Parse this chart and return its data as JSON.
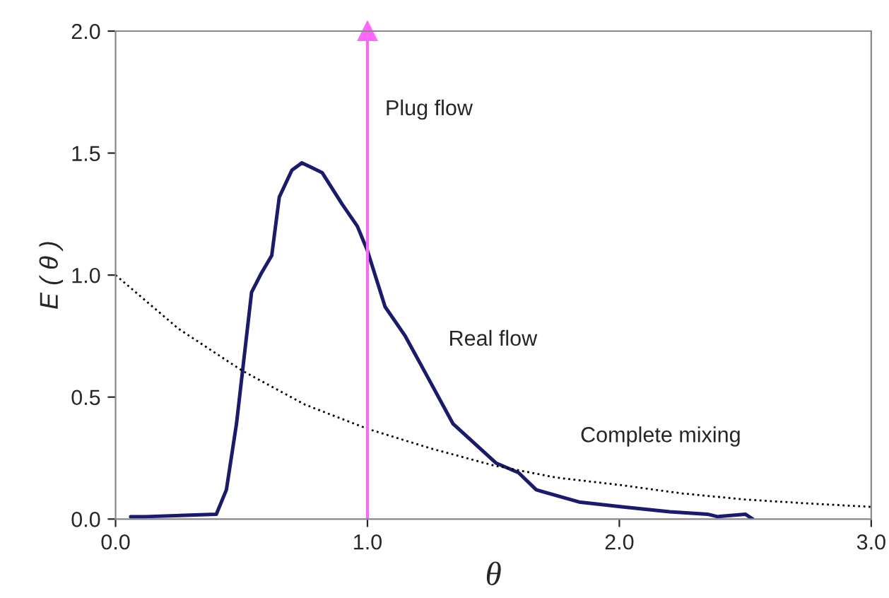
{
  "chart_data": {
    "type": "line",
    "xlabel": "θ",
    "ylabel": "E ( θ )",
    "xlim": [
      0.0,
      3.0
    ],
    "xticks": [
      {
        "value": 0,
        "label": "0.0"
      },
      {
        "value": 1,
        "label": "1.0"
      },
      {
        "value": 2,
        "label": "2.0"
      },
      {
        "value": 3,
        "label": "3.0"
      }
    ],
    "ylim": [
      0.0,
      2.0
    ],
    "yticks": [
      {
        "value": 0,
        "label": "0.0"
      },
      0.5,
      {
        "value": 1,
        "label": "1.0"
      },
      1.5,
      {
        "value": 2,
        "label": "2.0"
      }
    ],
    "grid": false,
    "legend": false,
    "marker": "none",
    "series": [
      {
        "name": "Real flow",
        "color": "#1a1a6e",
        "line_style": "solid",
        "x": [
          0.06,
          0.12,
          0.4,
          0.44,
          0.48,
          0.51,
          0.54,
          0.58,
          0.62,
          0.65,
          0.7,
          0.74,
          0.78,
          0.82,
          0.9,
          0.96,
          1.0,
          1.07,
          1.15,
          1.24,
          1.34,
          1.51,
          1.6,
          1.67,
          1.84,
          2.01,
          2.2,
          2.35,
          2.39,
          2.5,
          2.53
        ],
        "values": [
          0.01,
          0.01,
          0.02,
          0.12,
          0.39,
          0.66,
          0.93,
          1.01,
          1.08,
          1.32,
          1.43,
          1.46,
          1.44,
          1.42,
          1.29,
          1.2,
          1.1,
          0.87,
          0.75,
          0.58,
          0.39,
          0.23,
          0.19,
          0.12,
          0.07,
          0.05,
          0.03,
          0.02,
          0.01,
          0.02,
          0.0
        ]
      },
      {
        "name": "Complete mixing",
        "color": "#000000",
        "line_style": "dotted",
        "x": [
          0.0,
          0.25,
          0.5,
          0.75,
          1.0,
          1.25,
          1.5,
          1.75,
          2.0,
          2.25,
          2.5,
          2.75,
          3.0
        ],
        "values": [
          1.0,
          0.78,
          0.61,
          0.47,
          0.37,
          0.29,
          0.22,
          0.17,
          0.14,
          0.105,
          0.08,
          0.064,
          0.05
        ]
      }
    ],
    "ref_lines": [
      {
        "axis": "x",
        "value": 1.0,
        "label": "Plug flow",
        "color": "#ff66ff"
      }
    ]
  }
}
